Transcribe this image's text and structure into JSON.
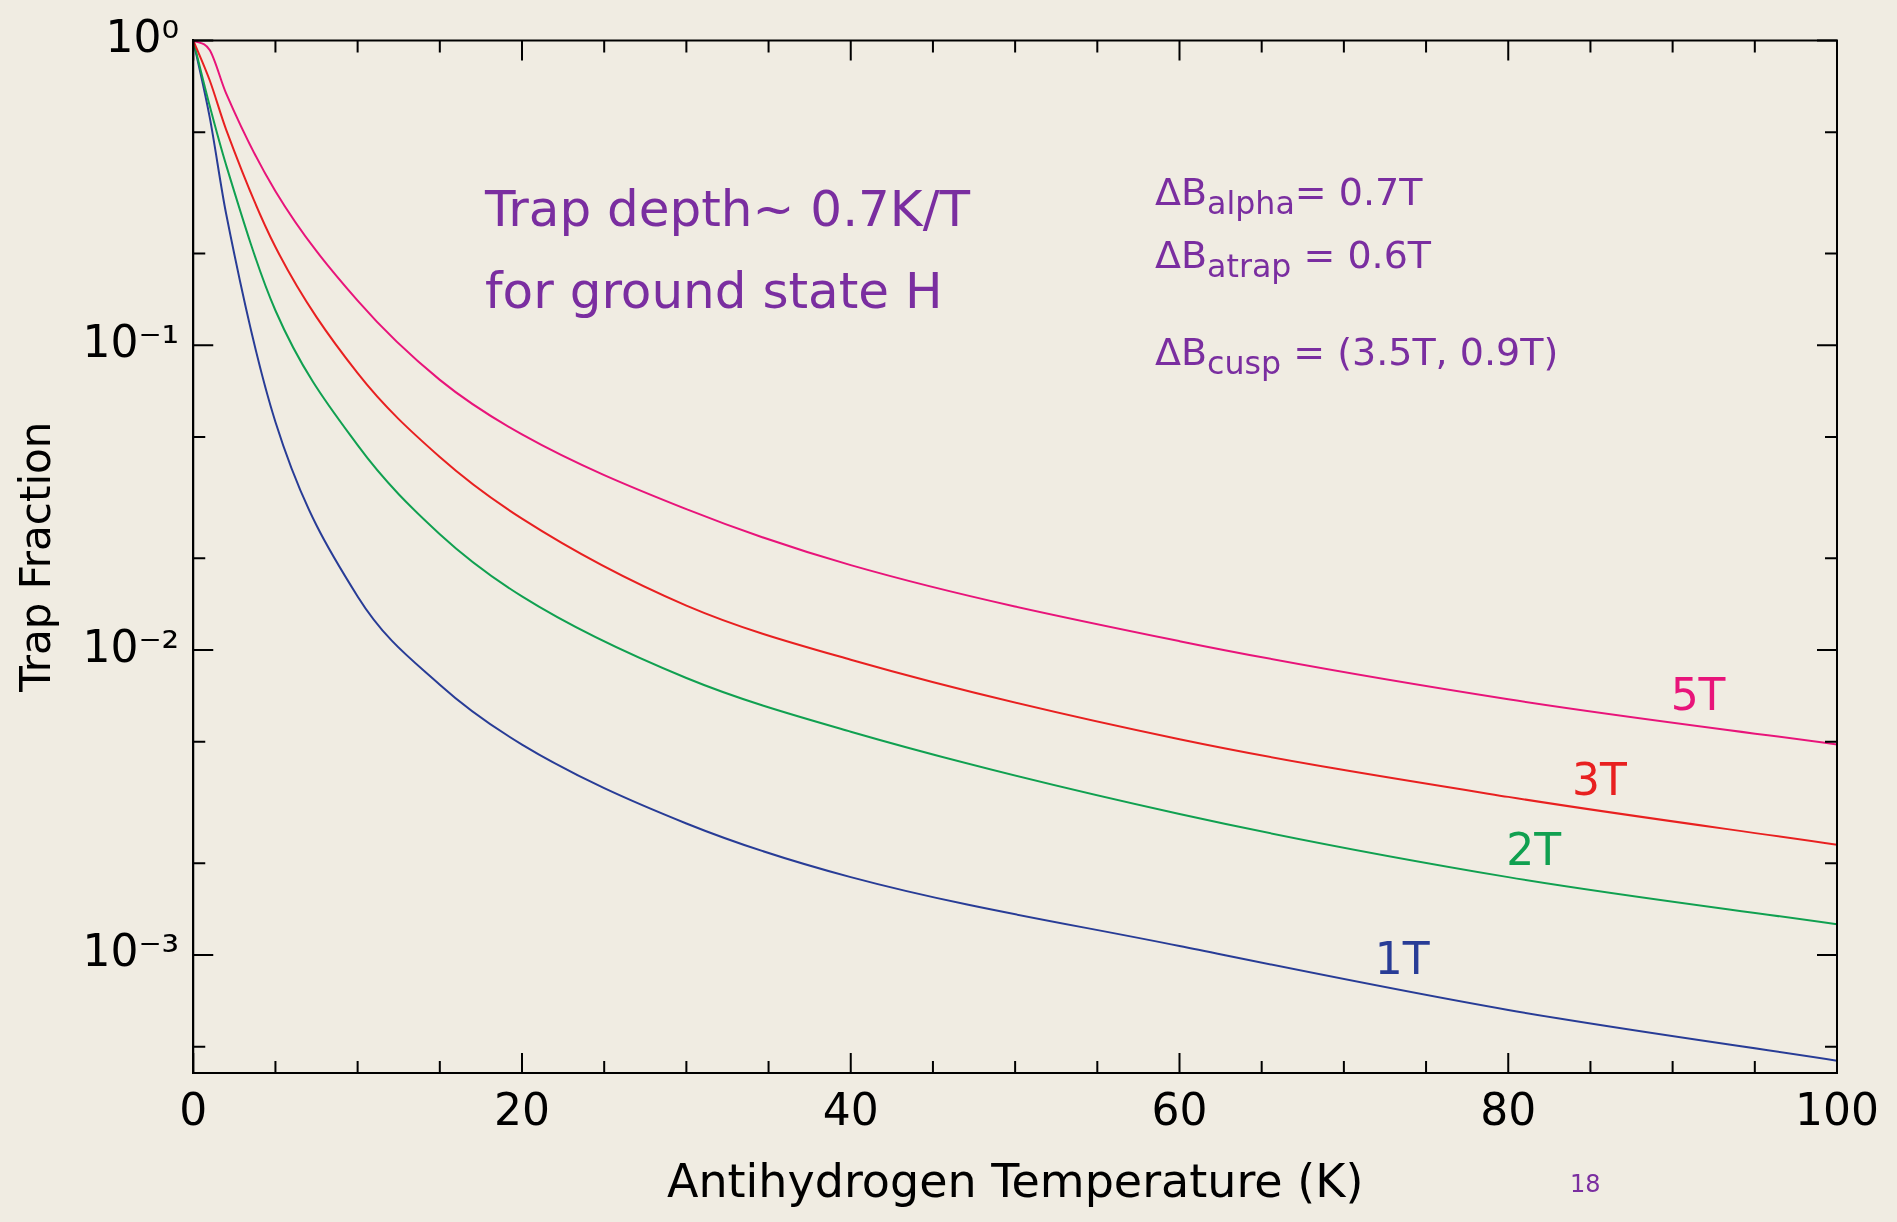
{
  "chart_data": {
    "type": "line",
    "xlabel": "Antihydrogen Temperature (K)",
    "ylabel": "Trap Fraction",
    "log": "y",
    "grid": false,
    "legend": false,
    "marker": "none",
    "line_style": "solid",
    "xlim": [
      0,
      100
    ],
    "xticks": [
      0,
      {
        "value": 5,
        "label": null
      },
      20,
      {
        "value": 10,
        "label": null
      },
      {
        "value": 15,
        "label": null
      },
      {
        "value": 25,
        "label": null
      },
      {
        "value": 30,
        "label": null
      },
      {
        "value": 35,
        "label": null
      },
      40,
      {
        "value": 45,
        "label": null
      },
      {
        "value": 50,
        "label": null
      },
      {
        "value": 55,
        "label": null
      },
      60,
      {
        "value": 65,
        "label": null
      },
      {
        "value": 70,
        "label": null
      },
      {
        "value": 75,
        "label": null
      },
      80,
      {
        "value": 85,
        "label": null
      },
      {
        "value": 90,
        "label": null
      },
      {
        "value": 95,
        "label": null
      },
      100
    ],
    "ylim": [
      0.00041,
      1
    ],
    "yticks": [
      {
        "value": 1,
        "label": "10⁰"
      },
      {
        "value": 0.1,
        "label": "10⁻¹"
      },
      {
        "value": 0.01,
        "label": "10⁻²"
      },
      {
        "value": 0.001,
        "label": "10⁻³"
      },
      {
        "value": 0.5,
        "label": null
      },
      {
        "value": 0.2,
        "label": null
      },
      {
        "value": 0.05,
        "label": null
      },
      {
        "value": 0.02,
        "label": null
      },
      {
        "value": 0.005,
        "label": null
      },
      {
        "value": 0.002,
        "label": null
      },
      {
        "value": 0.0005,
        "label": null
      }
    ],
    "x": [
      0,
      1,
      2,
      5,
      10,
      15,
      20,
      30,
      40,
      60,
      80,
      100
    ],
    "series": [
      {
        "name": "5T",
        "color": "#e8147a",
        "values": [
          1,
          0.93,
          0.67,
          0.32,
          0.14,
          0.077,
          0.051,
          0.029,
          0.019,
          0.0107,
          0.0069,
          0.0049
        ]
      },
      {
        "name": "3T",
        "color": "#e82020",
        "values": [
          1,
          0.74,
          0.51,
          0.21,
          0.081,
          0.043,
          0.027,
          0.014,
          0.0093,
          0.0051,
          0.0033,
          0.0023
        ]
      },
      {
        "name": "2T",
        "color": "#10a050",
        "values": [
          1,
          0.61,
          0.39,
          0.13,
          0.047,
          0.024,
          0.015,
          0.0081,
          0.0054,
          0.0029,
          0.0018,
          0.00126
        ]
      },
      {
        "name": "1T",
        "color": "#283c96",
        "values": [
          1,
          0.56,
          0.27,
          0.056,
          0.015,
          0.0077,
          0.0049,
          0.0027,
          0.0018,
          0.00107,
          0.00066,
          0.00045
        ]
      }
    ],
    "annotations": [
      "Trap depth~ 0.7K/T",
      "for ground state H",
      "ΔB$_{alpha}$=  0.7T",
      "ΔB$_{atrap}$ =  0.6T",
      "ΔB$_{cusp}$ = (3.5T, 0.9T)",
      "18"
    ]
  }
}
